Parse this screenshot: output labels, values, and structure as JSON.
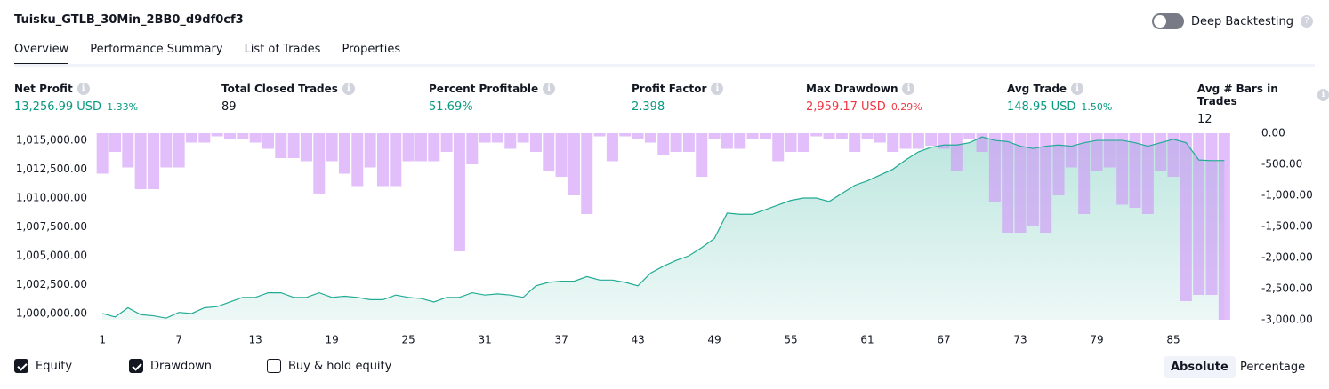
{
  "header": {
    "title": "Tuisku_GTLB_30Min_2BB0_d9df0cf3",
    "toggle_label": "Deep Backtesting"
  },
  "tabs": [
    "Overview",
    "Performance Summary",
    "List of Trades",
    "Properties"
  ],
  "metrics": [
    {
      "label": "Net Profit",
      "value": "13,256.99 USD",
      "extra": "1.33%",
      "color": "#089981"
    },
    {
      "label": "Total Closed Trades",
      "value": "89",
      "color": "#131722"
    },
    {
      "label": "Percent Profitable",
      "value": "51.69%",
      "color": "#089981"
    },
    {
      "label": "Profit Factor",
      "value": "2.398",
      "color": "#089981"
    },
    {
      "label": "Max Drawdown",
      "value": "2,959.17 USD",
      "extra": "0.29%",
      "color": "#f23645"
    },
    {
      "label": "Avg Trade",
      "value": "148.95 USD",
      "extra": "1.50%",
      "color": "#089981"
    },
    {
      "label": "Avg # Bars in Trades",
      "value": "12",
      "color": "#131722"
    }
  ],
  "chart_data": {
    "type": "line",
    "x": [
      1,
      2,
      3,
      4,
      5,
      6,
      7,
      8,
      9,
      10,
      11,
      12,
      13,
      14,
      15,
      16,
      17,
      18,
      19,
      20,
      21,
      22,
      23,
      24,
      25,
      26,
      27,
      28,
      29,
      30,
      31,
      32,
      33,
      34,
      35,
      36,
      37,
      38,
      39,
      40,
      41,
      42,
      43,
      44,
      45,
      46,
      47,
      48,
      49,
      50,
      51,
      52,
      53,
      54,
      55,
      56,
      57,
      58,
      59,
      60,
      61,
      62,
      63,
      64,
      65,
      66,
      67,
      68,
      69,
      70,
      71,
      72,
      73,
      74,
      75,
      76,
      77,
      78,
      79,
      80,
      81,
      82,
      83,
      84,
      85,
      86,
      87,
      88,
      89
    ],
    "series": [
      {
        "name": "Equity",
        "color": "#22ab94",
        "values": [
          1000000,
          999700,
          1000500,
          999900,
          999800,
          999600,
          1000100,
          1000000,
          1000500,
          1000600,
          1001000,
          1001400,
          1001400,
          1001800,
          1001800,
          1001400,
          1001400,
          1001800,
          1001400,
          1001500,
          1001400,
          1001200,
          1001200,
          1001600,
          1001400,
          1001300,
          1001000,
          1001400,
          1001400,
          1001800,
          1001600,
          1001700,
          1001600,
          1001400,
          1002400,
          1002700,
          1002800,
          1002800,
          1003200,
          1002900,
          1002900,
          1002700,
          1002400,
          1003500,
          1004100,
          1004600,
          1005000,
          1005700,
          1006500,
          1008700,
          1008600,
          1008600,
          1009000,
          1009400,
          1009800,
          1010000,
          1010000,
          1009700,
          1010400,
          1011100,
          1011500,
          1012000,
          1012500,
          1013300,
          1014000,
          1014400,
          1014600,
          1014600,
          1014800,
          1015300,
          1015000,
          1014900,
          1014500,
          1014300,
          1014500,
          1014600,
          1014500,
          1014800,
          1015000,
          1015000,
          1015000,
          1014800,
          1014500,
          1014800,
          1015100,
          1014800,
          1013300,
          1013250,
          1013257
        ]
      },
      {
        "name": "Drawdown",
        "color": "#ce93f8",
        "axis": "y2",
        "values": [
          -650,
          -300,
          -550,
          -900,
          -900,
          -550,
          -550,
          -150,
          -150,
          -50,
          -100,
          -100,
          -150,
          -250,
          -400,
          -400,
          -450,
          -970,
          -450,
          -650,
          -850,
          -550,
          -850,
          -850,
          -450,
          -450,
          -450,
          -300,
          -1900,
          -500,
          -150,
          -150,
          -250,
          -150,
          -300,
          -600,
          -700,
          -1000,
          -1300,
          -50,
          -450,
          -50,
          -100,
          -150,
          -350,
          -300,
          -300,
          -700,
          -100,
          -250,
          -250,
          -100,
          -100,
          -450,
          -300,
          -300,
          -50,
          -100,
          -100,
          -300,
          -100,
          -150,
          -300,
          -250,
          -250,
          -200,
          -250,
          -600,
          -100,
          -300,
          -1100,
          -1600,
          -1600,
          -1500,
          -1600,
          -1000,
          -550,
          -1300,
          -600,
          -550,
          -1150,
          -1200,
          -1300,
          -600,
          -700,
          -2700,
          -2600,
          -2600,
          -3000
        ]
      }
    ],
    "xlim": [
      0.5,
      91
    ],
    "xticks": [
      1,
      7,
      13,
      19,
      25,
      31,
      37,
      43,
      49,
      55,
      61,
      67,
      73,
      79,
      85
    ],
    "ylim": [
      999460,
      1015620
    ],
    "yticks": [
      {
        "value": 1000000,
        "label": "1,000,000.00"
      },
      {
        "value": 1002500,
        "label": "1,002,500.00"
      },
      {
        "value": 1005000,
        "label": "1,005,000.00"
      },
      {
        "value": 1007500,
        "label": "1,007,500.00"
      },
      {
        "value": 1010000,
        "label": "1,010,000.00"
      },
      {
        "value": 1012500,
        "label": "1,012,500.00"
      },
      {
        "value": 1015000,
        "label": "1,015,000.00"
      }
    ],
    "y2lim": [
      -3000,
      0
    ],
    "y2ticks": [
      {
        "value": 0,
        "label": "0.00"
      },
      {
        "value": -500,
        "label": "-500.00"
      },
      {
        "value": -1000,
        "label": "-1,000.00"
      },
      {
        "value": -1500,
        "label": "-1,500.00"
      },
      {
        "value": -2000,
        "label": "-2,000.00"
      },
      {
        "value": -2500,
        "label": "-2,500.00"
      },
      {
        "value": -3000,
        "label": "-3,000.00"
      }
    ]
  },
  "legend": [
    "Equity",
    "Drawdown",
    "Buy & hold equity"
  ],
  "scale_buttons": [
    "Absolute",
    "Percentage"
  ]
}
